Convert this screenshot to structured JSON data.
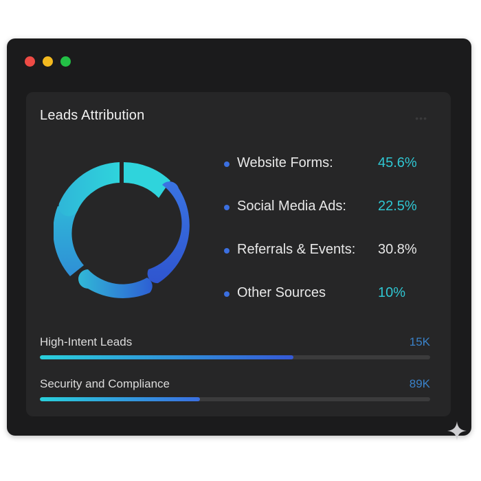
{
  "window": {
    "controls": [
      "close",
      "minimize",
      "maximize"
    ]
  },
  "card": {
    "title": "Leads Attribution",
    "menu_icon": "more-horizontal-icon"
  },
  "attribution": {
    "items": [
      {
        "label": "Website Forms:",
        "value": "45.6%",
        "value_color": "#2fc6d2"
      },
      {
        "label": "Social Media Ads:",
        "value": "22.5%",
        "value_color": "#2fc6d2"
      },
      {
        "label": "Referrals & Events:",
        "value": "30.8%",
        "value_color": "#e6e6e6"
      },
      {
        "label": "Other Sources",
        "value": "10%",
        "value_color": "#2fc6d2"
      }
    ],
    "dot_color": "#3b6fe0"
  },
  "metrics": [
    {
      "label": "High-Intent Leads",
      "value": "15K",
      "progress": 0.65,
      "fill_from": "#2ad0dc",
      "fill_to": "#3559d6"
    },
    {
      "label": "Security and Compliance",
      "value": "89K",
      "progress": 0.41,
      "fill_from": "#2ad0dc",
      "fill_to": "#3a6fe0"
    }
  ],
  "colors": {
    "window_bg": "#1b1b1c",
    "card_bg": "#262627",
    "accent_cyan": "#2fc6d2",
    "accent_blue": "#3a6fe0"
  }
}
